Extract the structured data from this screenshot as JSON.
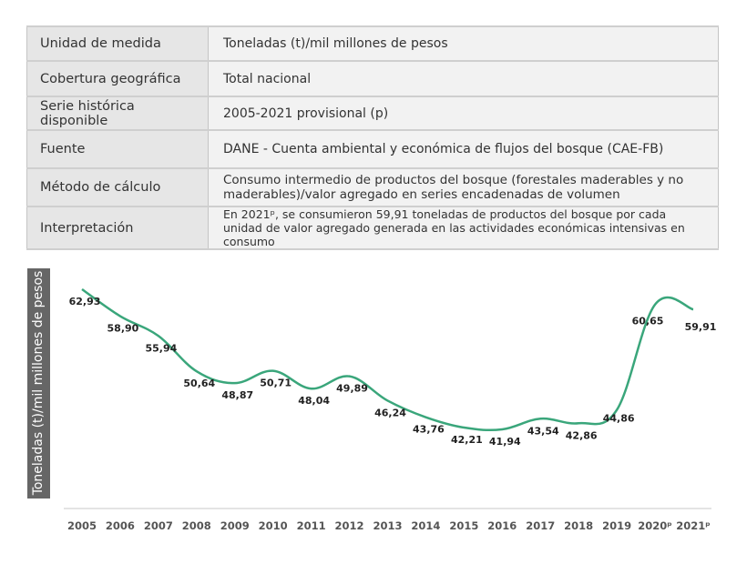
{
  "table": {
    "rows": [
      {
        "label": "Unidad de medida",
        "value": "Toneladas (t)/mil millones de pesos"
      },
      {
        "label": "Cobertura geográfica",
        "value": "Total nacional"
      },
      {
        "label": "Serie histórica disponible",
        "value": "2005-2021 provisional (p)"
      },
      {
        "label": "Fuente",
        "value": "DANE - Cuenta ambiental y económica de flujos del bosque (CAE-FB)"
      },
      {
        "label": "Método de cálculo",
        "value": "Consumo intermedio de productos del bosque (forestales maderables y no maderables)/valor agregado en series encadenadas de volumen"
      },
      {
        "label": "Interpretación",
        "value": "En 2021ᵖ, se consumieron 59,91 toneladas de productos del bosque por cada unidad de valor agregado generada en las actividades económicas intensivas en consumo"
      }
    ]
  },
  "colors": {
    "line": "#3aa67b",
    "ylabel_bg": "#666666"
  },
  "chart_data": {
    "type": "line",
    "title": "",
    "xlabel": "",
    "ylabel": "Toneladas (t)/mil millones de pesos",
    "categories": [
      "2005",
      "2006",
      "2007",
      "2008",
      "2009",
      "2010",
      "2011",
      "2012",
      "2013",
      "2014",
      "2015",
      "2016",
      "2017",
      "2018",
      "2019",
      "2020ᵖ",
      "2021ᵖ"
    ],
    "series": [
      {
        "name": "Toneladas (t)/mil millones de pesos",
        "values": [
          62.93,
          58.9,
          55.94,
          50.64,
          48.87,
          50.71,
          48.04,
          49.89,
          46.24,
          43.76,
          42.21,
          41.94,
          43.54,
          42.86,
          44.86,
          60.65,
          59.91
        ],
        "labels": [
          "62,93",
          "58,90",
          "55,94",
          "50,64",
          "48,87",
          "50,71",
          "48,04",
          "49,89",
          "46,24",
          "43,76",
          "42,21",
          "41,94",
          "43,54",
          "42,86",
          "44,86",
          "60,65",
          "59,91"
        ]
      }
    ],
    "ylim": [
      41.94,
      62.93
    ],
    "grid": false,
    "legend": "none",
    "smooth": true
  }
}
